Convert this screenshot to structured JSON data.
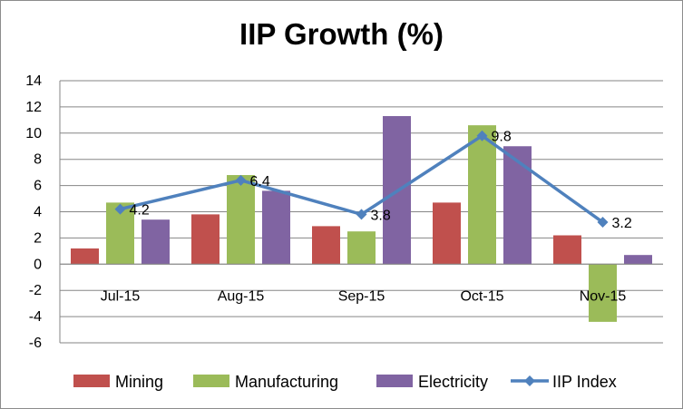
{
  "chart_data": {
    "type": "bar",
    "title": "IIP Growth (%)",
    "categories": [
      "Jul-15",
      "Aug-15",
      "Sep-15",
      "Oct-15",
      "Nov-15"
    ],
    "series": [
      {
        "name": "Mining",
        "type": "bar",
        "color": "#c0504d",
        "values": [
          1.2,
          3.8,
          2.9,
          4.7,
          2.2
        ]
      },
      {
        "name": "Manufacturing",
        "type": "bar",
        "color": "#9bbb59",
        "values": [
          4.7,
          6.8,
          2.5,
          10.6,
          -4.4
        ]
      },
      {
        "name": "Electricity",
        "type": "bar",
        "color": "#8064a2",
        "values": [
          3.4,
          5.6,
          11.3,
          9.0,
          0.7
        ]
      },
      {
        "name": "IIP Index",
        "type": "line",
        "color": "#4f81bd",
        "values": [
          4.2,
          6.4,
          3.8,
          9.8,
          3.2
        ],
        "data_labels": [
          "4.2",
          "6.4",
          "3.8",
          "9.8",
          "3.2"
        ]
      }
    ],
    "y_ticks": [
      "14",
      "12",
      "10",
      "8",
      "6",
      "4",
      "2",
      "0",
      "-2",
      "-4",
      "-6"
    ],
    "ylim": [
      -6,
      14
    ],
    "grid": "horizontal",
    "legend_position": "bottom"
  }
}
